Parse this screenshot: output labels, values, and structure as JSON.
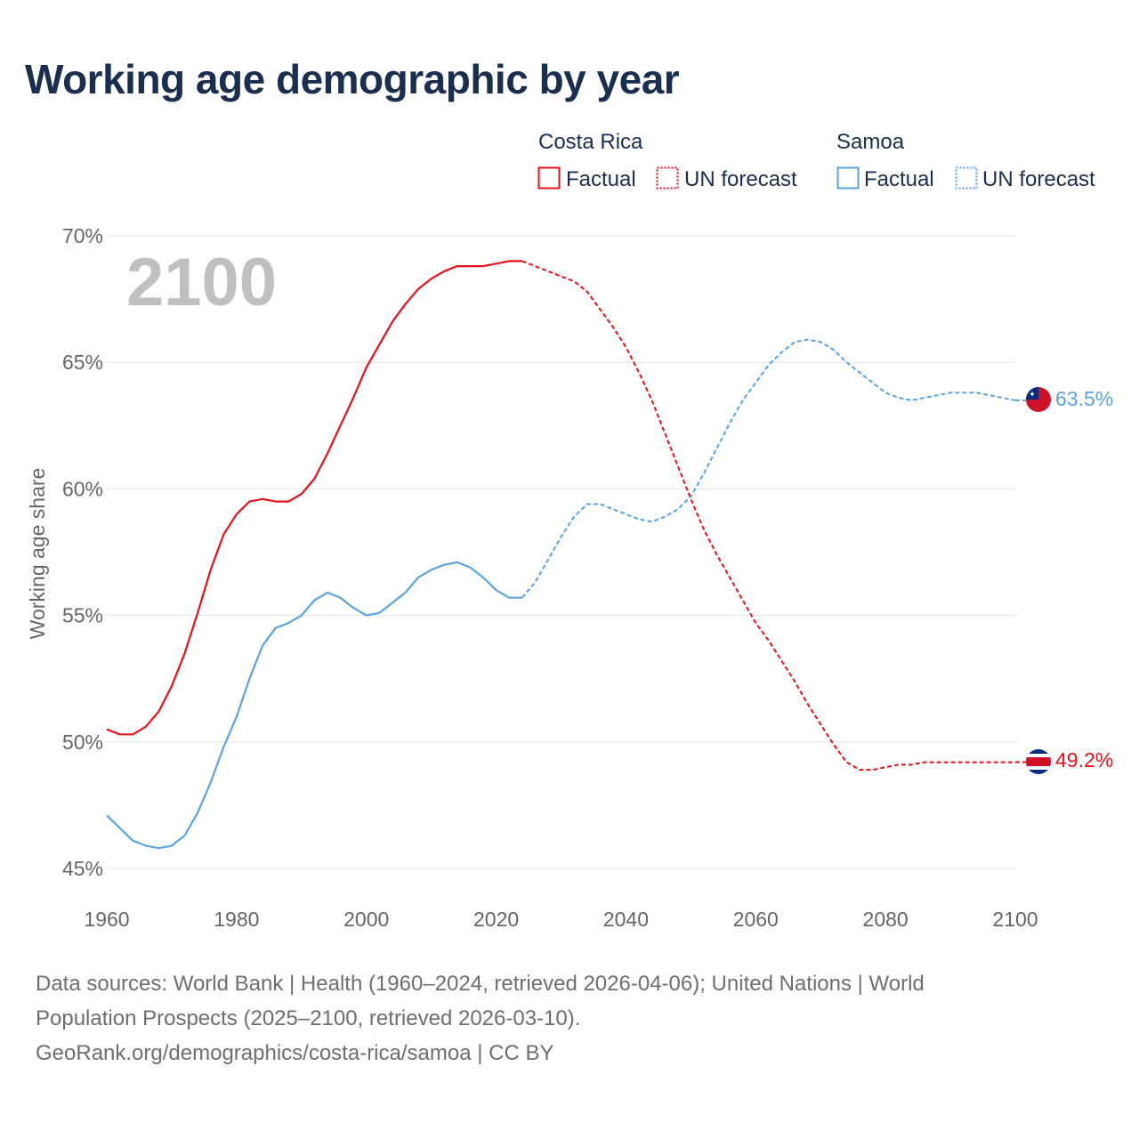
{
  "title": "Working age demographic by year",
  "colors": {
    "costa_rica": "#e8101a",
    "samoa": "#5ba3e0",
    "grid": "#e4e4e4",
    "title": "#1a2e4f"
  },
  "legend": {
    "groups": [
      {
        "country": "Costa Rica",
        "factual": "Factual",
        "forecast": "UN forecast"
      },
      {
        "country": "Samoa",
        "factual": "Factual",
        "forecast": "UN forecast"
      }
    ]
  },
  "year_watermark": "2100",
  "end_labels": {
    "samoa": "63.5%",
    "costa_rica": "49.2%"
  },
  "flags": {
    "samoa": "samoa-flag-icon",
    "costa_rica": "costa-rica-flag-icon"
  },
  "footer": {
    "line1": "Data sources: World Bank | Health (1960–2024, retrieved 2026-04-06); United Nations | World",
    "line2": "Population Prospects (2025–2100, retrieved 2026-03-10).",
    "line3": "GeoRank.org/demographics/costa-rica/samoa | CC BY"
  },
  "chart_data": {
    "type": "line",
    "title": "Working age demographic by year",
    "xlabel": "",
    "ylabel": "Working age share",
    "xlim": [
      1960,
      2100
    ],
    "ylim": [
      45,
      70
    ],
    "x_ticks": [
      1960,
      1980,
      2000,
      2020,
      2040,
      2060,
      2080,
      2100
    ],
    "y_ticks": [
      45,
      50,
      55,
      60,
      65,
      70
    ],
    "y_tick_labels": [
      "45%",
      "50%",
      "55%",
      "60%",
      "65%",
      "70%"
    ],
    "grid": true,
    "factual_end_year": 2024,
    "series": [
      {
        "name": "Costa Rica",
        "color": "#e8101a",
        "x": [
          1960,
          1962,
          1964,
          1966,
          1968,
          1970,
          1972,
          1974,
          1976,
          1978,
          1980,
          1982,
          1984,
          1986,
          1988,
          1990,
          1992,
          1994,
          1996,
          1998,
          2000,
          2002,
          2004,
          2006,
          2008,
          2010,
          2012,
          2014,
          2016,
          2018,
          2020,
          2022,
          2024,
          2026,
          2028,
          2030,
          2032,
          2034,
          2036,
          2038,
          2040,
          2042,
          2044,
          2046,
          2048,
          2050,
          2052,
          2054,
          2056,
          2058,
          2060,
          2062,
          2064,
          2066,
          2068,
          2070,
          2072,
          2074,
          2076,
          2078,
          2080,
          2082,
          2084,
          2086,
          2088,
          2090,
          2092,
          2094,
          2096,
          2098,
          2100
        ],
        "values": [
          50.5,
          50.3,
          50.3,
          50.6,
          51.2,
          52.2,
          53.5,
          55.1,
          56.8,
          58.2,
          59.0,
          59.5,
          59.6,
          59.5,
          59.5,
          59.8,
          60.4,
          61.4,
          62.5,
          63.6,
          64.8,
          65.7,
          66.6,
          67.3,
          67.9,
          68.3,
          68.6,
          68.8,
          68.8,
          68.8,
          68.9,
          69.0,
          69.0,
          68.8,
          68.6,
          68.4,
          68.2,
          67.8,
          67.1,
          66.4,
          65.6,
          64.6,
          63.5,
          62.2,
          60.9,
          59.6,
          58.4,
          57.4,
          56.5,
          55.6,
          54.7,
          54.0,
          53.2,
          52.4,
          51.5,
          50.7,
          49.9,
          49.2,
          48.9,
          48.9,
          49.0,
          49.1,
          49.1,
          49.2,
          49.2,
          49.2,
          49.2,
          49.2,
          49.2,
          49.2,
          49.2
        ]
      },
      {
        "name": "Samoa",
        "color": "#5ba3e0",
        "x": [
          1960,
          1962,
          1964,
          1966,
          1968,
          1970,
          1972,
          1974,
          1976,
          1978,
          1980,
          1982,
          1984,
          1986,
          1988,
          1990,
          1992,
          1994,
          1996,
          1998,
          2000,
          2002,
          2004,
          2006,
          2008,
          2010,
          2012,
          2014,
          2016,
          2018,
          2020,
          2022,
          2024,
          2026,
          2028,
          2030,
          2032,
          2034,
          2036,
          2038,
          2040,
          2042,
          2044,
          2046,
          2048,
          2050,
          2052,
          2054,
          2056,
          2058,
          2060,
          2062,
          2064,
          2066,
          2068,
          2070,
          2072,
          2074,
          2076,
          2078,
          2080,
          2082,
          2084,
          2086,
          2088,
          2090,
          2092,
          2094,
          2096,
          2098,
          2100
        ],
        "values": [
          47.1,
          46.6,
          46.1,
          45.9,
          45.8,
          45.9,
          46.3,
          47.2,
          48.4,
          49.8,
          51.0,
          52.5,
          53.8,
          54.5,
          54.7,
          55.0,
          55.6,
          55.9,
          55.7,
          55.3,
          55.0,
          55.1,
          55.5,
          55.9,
          56.5,
          56.8,
          57.0,
          57.1,
          56.9,
          56.5,
          56.0,
          55.7,
          55.7,
          56.3,
          57.2,
          58.1,
          58.9,
          59.4,
          59.4,
          59.2,
          59.0,
          58.8,
          58.7,
          58.9,
          59.2,
          59.7,
          60.6,
          61.6,
          62.6,
          63.5,
          64.2,
          64.9,
          65.4,
          65.8,
          65.9,
          65.8,
          65.5,
          65.0,
          64.6,
          64.2,
          63.8,
          63.6,
          63.5,
          63.6,
          63.7,
          63.8,
          63.8,
          63.8,
          63.7,
          63.6,
          63.5
        ]
      }
    ]
  }
}
